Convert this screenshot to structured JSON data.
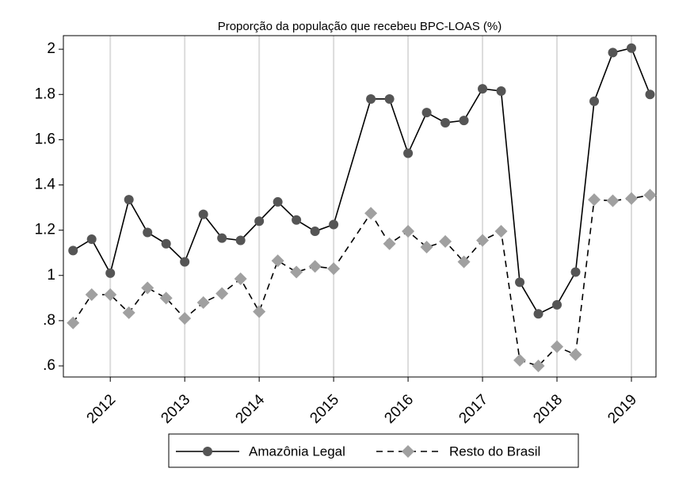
{
  "chart_data": {
    "type": "line",
    "title": "Proporção da população que recebeu BPC-LOAS (%)",
    "x": [
      2011.5,
      2011.75,
      2012,
      2012.25,
      2012.5,
      2012.75,
      2013,
      2013.25,
      2013.5,
      2013.75,
      2014,
      2014.25,
      2014.5,
      2014.75,
      2015,
      2015.5,
      2015.75,
      2016,
      2016.25,
      2016.5,
      2016.75,
      2017,
      2017.25,
      2017.5,
      2017.75,
      2018,
      2018.25,
      2018.5,
      2018.75,
      2019,
      2019.25
    ],
    "series": [
      {
        "name": "Amazônia Legal",
        "color": "#555555",
        "line_color": "#000000",
        "marker": "circle",
        "dashed": false,
        "values": [
          1.11,
          1.16,
          1.01,
          1.335,
          1.19,
          1.14,
          1.06,
          1.27,
          1.165,
          1.155,
          1.24,
          1.325,
          1.245,
          1.195,
          1.225,
          1.78,
          1.78,
          1.54,
          1.72,
          1.675,
          1.685,
          1.825,
          1.815,
          0.97,
          0.83,
          0.87,
          1.015,
          1.77,
          1.985,
          2.005,
          1.8
        ]
      },
      {
        "name": "Resto do Brasil",
        "color": "#a0a0a0",
        "line_color": "#000000",
        "marker": "diamond",
        "dashed": true,
        "values": [
          0.79,
          0.915,
          0.915,
          0.835,
          0.945,
          0.9,
          0.81,
          0.88,
          0.92,
          0.985,
          0.84,
          1.065,
          1.015,
          1.04,
          1.03,
          1.275,
          1.14,
          1.195,
          1.125,
          1.15,
          1.06,
          1.155,
          1.195,
          0.625,
          0.6,
          0.685,
          0.65,
          1.335,
          1.33,
          1.34,
          1.355
        ]
      }
    ],
    "xlim": [
      2011.37,
      2019.33
    ],
    "xticks": [
      2012,
      2013,
      2014,
      2015,
      2016,
      2017,
      2018,
      2019
    ],
    "ylim": [
      0.551,
      2.06
    ],
    "yticks": [
      {
        "value": 0.6,
        "label": ".6"
      },
      {
        "value": 0.8,
        "label": ".8"
      },
      1,
      1.2,
      1.4,
      1.6,
      1.8,
      2
    ],
    "grid": "x",
    "legend": "bottom"
  }
}
